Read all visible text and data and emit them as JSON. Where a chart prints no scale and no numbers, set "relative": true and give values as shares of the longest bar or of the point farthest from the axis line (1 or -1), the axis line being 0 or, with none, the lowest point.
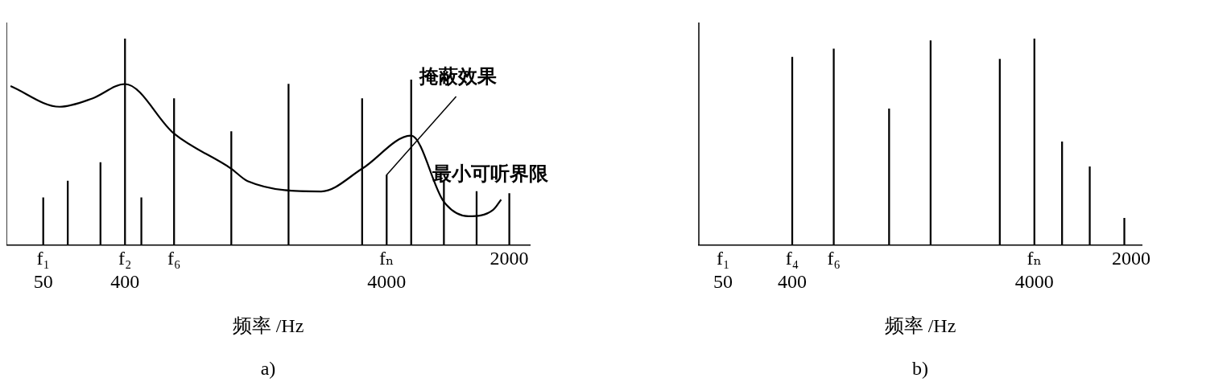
{
  "chart_data": [
    {
      "type": "bar",
      "relative": true,
      "title": "a)",
      "xlabel": "频率 /Hz",
      "legend": false,
      "grid": false,
      "categories": [
        null,
        null,
        null,
        null,
        "f₁\n50",
        null,
        null,
        null,
        null,
        null,
        null,
        null,
        null,
        null,
        "f₂\n400",
        null,
        null,
        null,
        null,
        null,
        "f₆",
        null,
        null,
        null,
        null,
        null,
        null,
        null,
        null,
        null,
        null,
        null,
        null,
        null,
        null,
        null,
        null,
        null,
        null,
        null,
        null,
        null,
        null,
        null,
        null,
        null,
        "fₙ\n4000",
        null,
        null,
        null,
        null,
        null,
        null,
        null,
        null,
        null,
        null,
        null,
        null,
        null,
        null,
        "2000",
        null,
        null
      ],
      "series": [
        {
          "color": "#000000",
          "values": [
            null,
            null,
            null,
            null,
            0.23,
            null,
            null,
            0.31,
            null,
            null,
            null,
            0.4,
            null,
            null,
            1,
            null,
            0.23,
            null,
            null,
            null,
            0.71,
            null,
            null,
            null,
            null,
            null,
            null,
            0.55,
            null,
            null,
            null,
            null,
            null,
            null,
            0.78,
            null,
            null,
            null,
            null,
            null,
            null,
            null,
            null,
            0.71,
            null,
            null,
            0.34,
            null,
            null,
            0.8,
            null,
            null,
            null,
            0.31,
            null,
            null,
            null,
            0.26,
            null,
            null,
            null,
            0.25,
            null,
            null
          ]
        },
        {
          "type": "line",
          "color": "#000000",
          "values": [
            0.77,
            null,
            null,
            null,
            null,
            null,
            0.67,
            null,
            null,
            null,
            0.71,
            null,
            null,
            null,
            0.78,
            null,
            null,
            null,
            null,
            null,
            0.54,
            null,
            null,
            null,
            null,
            null,
            null,
            0.37,
            null,
            0.31,
            null,
            null,
            null,
            null,
            null,
            null,
            null,
            null,
            0.26,
            null,
            null,
            null,
            null,
            0.37,
            null,
            null,
            null,
            null,
            null,
            0.53,
            null,
            null,
            null,
            0.21,
            null,
            null,
            0.14,
            null,
            null,
            0.17,
            0.22,
            null,
            null,
            null
          ]
        }
      ],
      "annotations": [
        "掩蔽效果",
        "最小可听界限"
      ]
    },
    {
      "type": "bar",
      "relative": true,
      "title": "b)",
      "xlabel": "频率 /Hz",
      "legend": false,
      "grid": false,
      "categories": [
        null,
        null,
        null,
        "f₁\n50",
        null,
        null,
        null,
        null,
        null,
        null,
        null,
        null,
        null,
        "f₄\n400",
        null,
        null,
        null,
        null,
        null,
        "f₆",
        null,
        null,
        null,
        null,
        null,
        null,
        null,
        null,
        null,
        null,
        null,
        null,
        null,
        null,
        null,
        null,
        null,
        null,
        null,
        null,
        null,
        null,
        null,
        null,
        null,
        null,
        null,
        null,
        "fₙ\n4000",
        null,
        null,
        null,
        null,
        null,
        null,
        null,
        null,
        null,
        null,
        null,
        null,
        null,
        "2000",
        null
      ],
      "series": [
        {
          "color": "#000000",
          "values": [
            null,
            null,
            null,
            null,
            null,
            null,
            null,
            null,
            null,
            null,
            null,
            null,
            null,
            0.91,
            null,
            null,
            null,
            null,
            null,
            0.95,
            null,
            null,
            null,
            null,
            null,
            null,
            null,
            0.66,
            null,
            null,
            null,
            null,
            null,
            0.99,
            null,
            null,
            null,
            null,
            null,
            null,
            null,
            null,
            null,
            0.9,
            null,
            null,
            null,
            null,
            1,
            null,
            null,
            null,
            0.5,
            null,
            null,
            null,
            0.38,
            null,
            null,
            null,
            null,
            0.13,
            null,
            null
          ]
        }
      ]
    }
  ]
}
